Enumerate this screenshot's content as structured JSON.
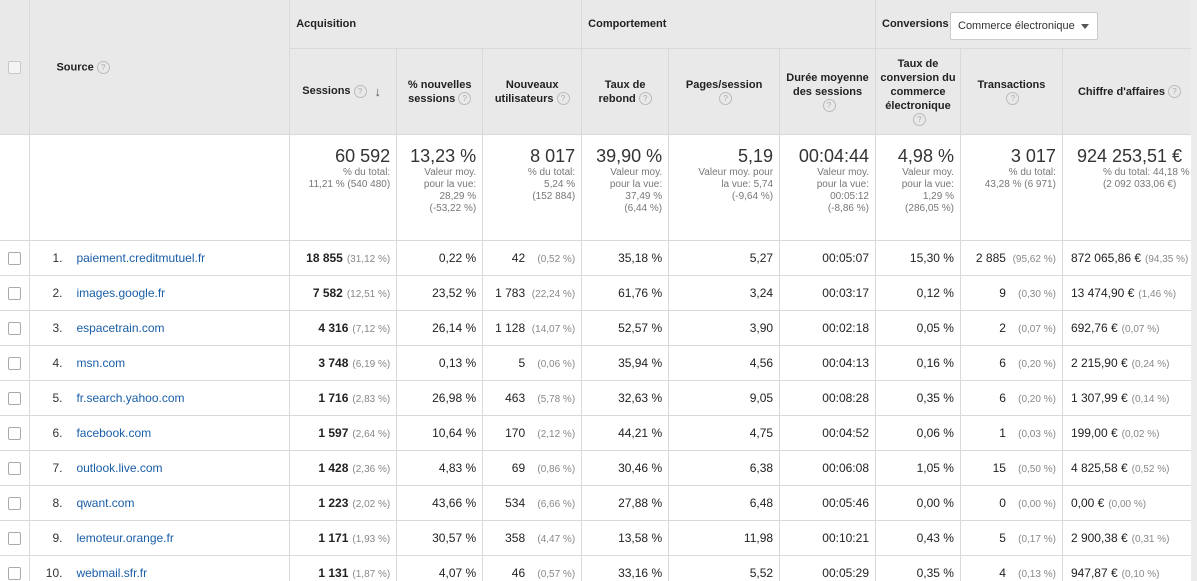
{
  "groups": {
    "acquisition": "Acquisition",
    "behavior": "Comportement",
    "conversions": "Conversions",
    "conversion_select": "Commerce électronique"
  },
  "columns": {
    "source": "Source",
    "sessions": "Sessions",
    "new_sessions": "% nouvelles sessions",
    "new_users": "Nouveaux utilisateurs",
    "bounce": "Taux de rebond",
    "pages": "Pages/session",
    "duration": "Durée moyenne des sessions",
    "conv_rate": "Taux de conversion du commerce électronique",
    "transactions": "Transactions",
    "revenue": "Chiffre d'affaires"
  },
  "totals": {
    "sessions": {
      "value": "60 592",
      "l1": "% du total:",
      "l2": "11,21 % (540 480)"
    },
    "new_sessions": {
      "value": "13,23 %",
      "l1": "Valeur moy.",
      "l2": "pour la vue:",
      "l3": "28,29 %",
      "l4": "(-53,22 %)"
    },
    "new_users": {
      "value": "8 017",
      "l1": "% du total:",
      "l2": "5,24 %",
      "l3": "(152 884)"
    },
    "bounce": {
      "value": "39,90 %",
      "l1": "Valeur moy.",
      "l2": "pour la vue:",
      "l3": "37,49 %",
      "l4": "(6,44 %)"
    },
    "pages": {
      "value": "5,19",
      "l1": "Valeur moy. pour",
      "l2": "la vue: 5,74",
      "l3": "(-9,64 %)"
    },
    "duration": {
      "value": "00:04:44",
      "l1": "Valeur moy.",
      "l2": "pour la vue:",
      "l3": "00:05:12",
      "l4": "(-8,86 %)"
    },
    "conv_rate": {
      "value": "4,98 %",
      "l1": "Valeur moy.",
      "l2": "pour la vue:",
      "l3": "1,29 %",
      "l4": "(286,05 %)"
    },
    "transactions": {
      "value": "3 017",
      "l1": "% du total:",
      "l2": "43,28 % (6 971)"
    },
    "revenue": {
      "value": "924 253,51 €",
      "l1": "% du total: 44,18 %",
      "l2": "(2 092 033,06 €)"
    }
  },
  "rows": [
    {
      "idx": "1.",
      "source": "paiement.creditmutuel.fr",
      "sessions": "18 855",
      "sessions_pct": "(31,12 %)",
      "new_sessions": "0,22 %",
      "new_users": "42",
      "new_users_pct": "(0,52 %)",
      "bounce": "35,18 %",
      "pages": "5,27",
      "duration": "00:05:07",
      "conv_rate": "15,30 %",
      "transactions": "2 885",
      "transactions_pct": "(95,62 %)",
      "revenue": "872 065,86 €",
      "revenue_pct": "(94,35 %)"
    },
    {
      "idx": "2.",
      "source": "images.google.fr",
      "sessions": "7 582",
      "sessions_pct": "(12,51 %)",
      "new_sessions": "23,52 %",
      "new_users": "1 783",
      "new_users_pct": "(22,24 %)",
      "bounce": "61,76 %",
      "pages": "3,24",
      "duration": "00:03:17",
      "conv_rate": "0,12 %",
      "transactions": "9",
      "transactions_pct": "(0,30 %)",
      "revenue": "13 474,90 €",
      "revenue_pct": "(1,46 %)"
    },
    {
      "idx": "3.",
      "source": "espacetrain.com",
      "sessions": "4 316",
      "sessions_pct": "(7,12 %)",
      "new_sessions": "26,14 %",
      "new_users": "1 128",
      "new_users_pct": "(14,07 %)",
      "bounce": "52,57 %",
      "pages": "3,90",
      "duration": "00:02:18",
      "conv_rate": "0,05 %",
      "transactions": "2",
      "transactions_pct": "(0,07 %)",
      "revenue": "692,76 €",
      "revenue_pct": "(0,07 %)"
    },
    {
      "idx": "4.",
      "source": "msn.com",
      "sessions": "3 748",
      "sessions_pct": "(6,19 %)",
      "new_sessions": "0,13 %",
      "new_users": "5",
      "new_users_pct": "(0,06 %)",
      "bounce": "35,94 %",
      "pages": "4,56",
      "duration": "00:04:13",
      "conv_rate": "0,16 %",
      "transactions": "6",
      "transactions_pct": "(0,20 %)",
      "revenue": "2 215,90 €",
      "revenue_pct": "(0,24 %)"
    },
    {
      "idx": "5.",
      "source": "fr.search.yahoo.com",
      "sessions": "1 716",
      "sessions_pct": "(2,83 %)",
      "new_sessions": "26,98 %",
      "new_users": "463",
      "new_users_pct": "(5,78 %)",
      "bounce": "32,63 %",
      "pages": "9,05",
      "duration": "00:08:28",
      "conv_rate": "0,35 %",
      "transactions": "6",
      "transactions_pct": "(0,20 %)",
      "revenue": "1 307,99 €",
      "revenue_pct": "(0,14 %)"
    },
    {
      "idx": "6.",
      "source": "facebook.com",
      "sessions": "1 597",
      "sessions_pct": "(2,64 %)",
      "new_sessions": "10,64 %",
      "new_users": "170",
      "new_users_pct": "(2,12 %)",
      "bounce": "44,21 %",
      "pages": "4,75",
      "duration": "00:04:52",
      "conv_rate": "0,06 %",
      "transactions": "1",
      "transactions_pct": "(0,03 %)",
      "revenue": "199,00 €",
      "revenue_pct": "(0,02 %)"
    },
    {
      "idx": "7.",
      "source": "outlook.live.com",
      "sessions": "1 428",
      "sessions_pct": "(2,36 %)",
      "new_sessions": "4,83 %",
      "new_users": "69",
      "new_users_pct": "(0,86 %)",
      "bounce": "30,46 %",
      "pages": "6,38",
      "duration": "00:06:08",
      "conv_rate": "1,05 %",
      "transactions": "15",
      "transactions_pct": "(0,50 %)",
      "revenue": "4 825,58 €",
      "revenue_pct": "(0,52 %)"
    },
    {
      "idx": "8.",
      "source": "qwant.com",
      "sessions": "1 223",
      "sessions_pct": "(2,02 %)",
      "new_sessions": "43,66 %",
      "new_users": "534",
      "new_users_pct": "(6,66 %)",
      "bounce": "27,88 %",
      "pages": "6,48",
      "duration": "00:05:46",
      "conv_rate": "0,00 %",
      "transactions": "0",
      "transactions_pct": "(0,00 %)",
      "revenue": "0,00 €",
      "revenue_pct": "(0,00 %)"
    },
    {
      "idx": "9.",
      "source": "lemoteur.orange.fr",
      "sessions": "1 171",
      "sessions_pct": "(1,93 %)",
      "new_sessions": "30,57 %",
      "new_users": "358",
      "new_users_pct": "(4,47 %)",
      "bounce": "13,58 %",
      "pages": "11,98",
      "duration": "00:10:21",
      "conv_rate": "0,43 %",
      "transactions": "5",
      "transactions_pct": "(0,17 %)",
      "revenue": "2 900,38 €",
      "revenue_pct": "(0,31 %)"
    },
    {
      "idx": "10.",
      "source": "webmail.sfr.fr",
      "sessions": "1 131",
      "sessions_pct": "(1,87 %)",
      "new_sessions": "4,07 %",
      "new_users": "46",
      "new_users_pct": "(0,57 %)",
      "bounce": "33,16 %",
      "pages": "5,52",
      "duration": "00:05:29",
      "conv_rate": "0,35 %",
      "transactions": "4",
      "transactions_pct": "(0,13 %)",
      "revenue": "947,87 €",
      "revenue_pct": "(0,10 %)"
    }
  ]
}
